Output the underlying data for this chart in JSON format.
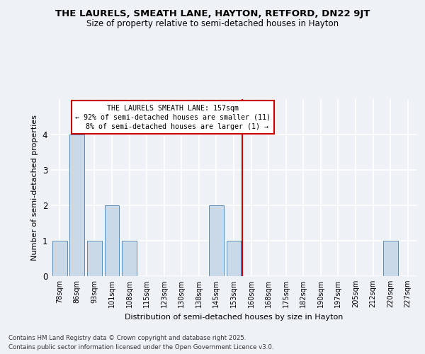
{
  "title": "THE LAURELS, SMEATH LANE, HAYTON, RETFORD, DN22 9JT",
  "subtitle": "Size of property relative to semi-detached houses in Hayton",
  "xlabel": "Distribution of semi-detached houses by size in Hayton",
  "ylabel": "Number of semi-detached properties",
  "categories": [
    "78sqm",
    "86sqm",
    "93sqm",
    "101sqm",
    "108sqm",
    "115sqm",
    "123sqm",
    "130sqm",
    "138sqm",
    "145sqm",
    "153sqm",
    "160sqm",
    "168sqm",
    "175sqm",
    "182sqm",
    "190sqm",
    "197sqm",
    "205sqm",
    "212sqm",
    "220sqm",
    "227sqm"
  ],
  "values": [
    1,
    4,
    1,
    2,
    1,
    0,
    0,
    0,
    0,
    2,
    1,
    0,
    0,
    0,
    0,
    0,
    0,
    0,
    0,
    1,
    0
  ],
  "bar_color": "#c9d9e8",
  "bar_edge_color": "#5b8db8",
  "subject_line_index": 11,
  "subject_label": "THE LAURELS SMEATH LANE: 157sqm",
  "smaller_pct": "92%",
  "smaller_count": 11,
  "larger_pct": "8%",
  "larger_count": 1,
  "annotation_box_color": "#ffffff",
  "annotation_box_edge": "#cc0000",
  "subject_line_color": "#cc0000",
  "ylim": [
    0,
    5
  ],
  "yticks": [
    0,
    1,
    2,
    3,
    4
  ],
  "footer_line1": "Contains HM Land Registry data © Crown copyright and database right 2025.",
  "footer_line2": "Contains public sector information licensed under the Open Government Licence v3.0.",
  "background_color": "#eef2f7",
  "plot_background": "#eef2f7",
  "grid_color": "#ffffff",
  "title_fontsize": 9.5,
  "subtitle_fontsize": 8.5,
  "ylabel_fontsize": 8,
  "xlabel_fontsize": 8,
  "ytick_fontsize": 8.5,
  "xtick_fontsize": 7
}
